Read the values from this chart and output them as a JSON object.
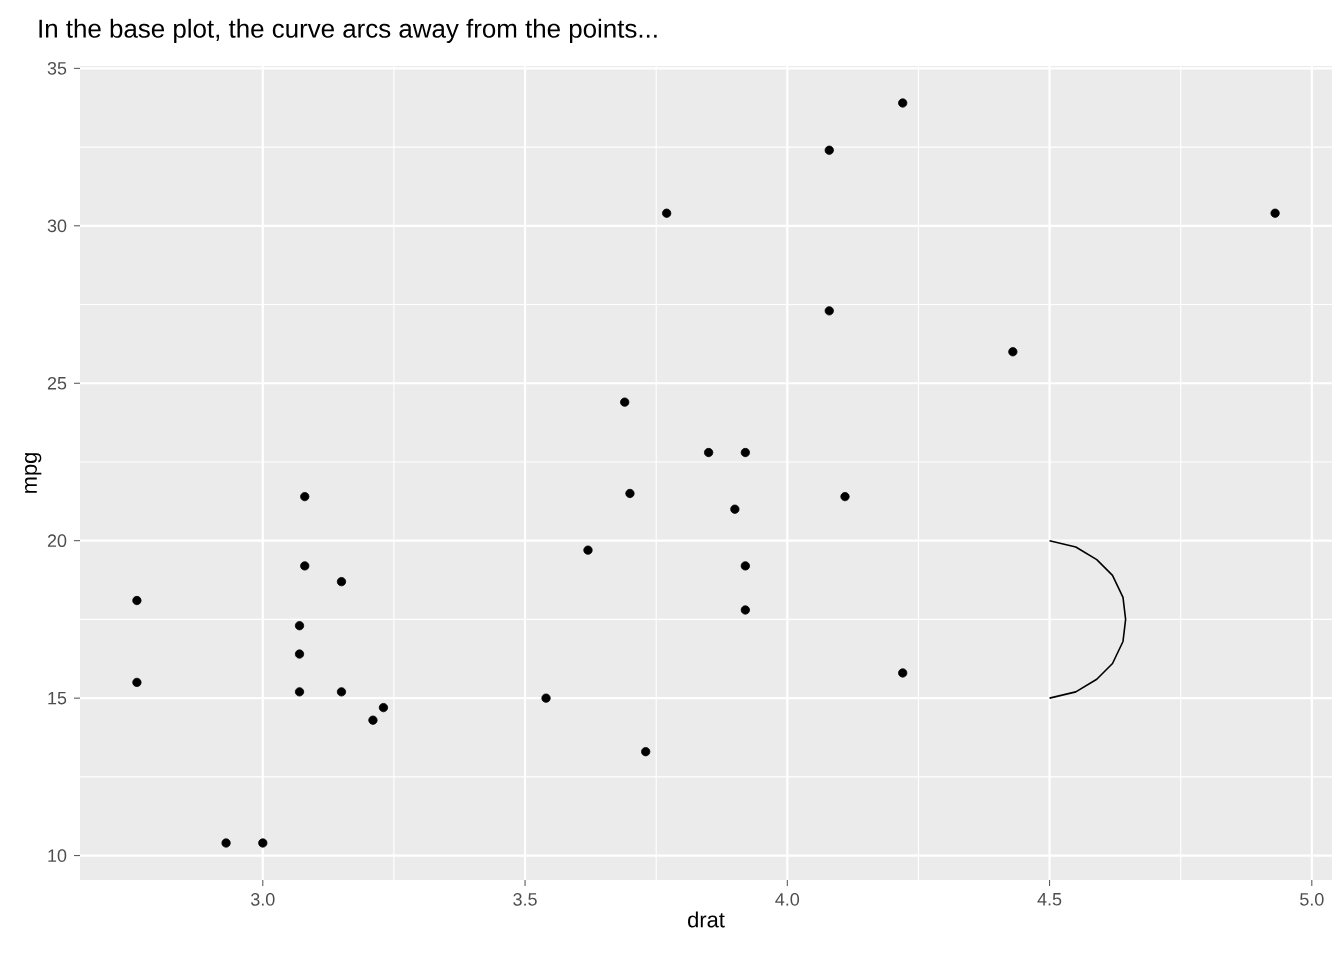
{
  "chart_data": {
    "type": "scatter",
    "title": "In the base plot, the curve arcs away from the points...",
    "xlabel": "drat",
    "ylabel": "mpg",
    "xlim": [
      2.6515,
      5.0385
    ],
    "ylim": [
      9.225,
      35.075
    ],
    "xticks": [
      {
        "value": 3,
        "label": "3.0"
      },
      {
        "value": 3.5,
        "label": "3.5"
      },
      {
        "value": 4,
        "label": "4.0"
      },
      {
        "value": 4.5,
        "label": "4.5"
      },
      {
        "value": 5,
        "label": "5.0"
      }
    ],
    "yticks": [
      10,
      15,
      20,
      25,
      30,
      35
    ],
    "grid": true,
    "marker": "circle",
    "series": [
      {
        "color": "#000000",
        "x": [
          3.9,
          3.85,
          3.08,
          3.15,
          2.76,
          3.21,
          3.69,
          3.92,
          3.92,
          3.92,
          3.07,
          3.07,
          3.07,
          2.93,
          3.0,
          3.23,
          4.08,
          4.93,
          4.22,
          3.7,
          2.76,
          3.15,
          3.73,
          3.08,
          4.08,
          4.43,
          3.77,
          4.22,
          3.62,
          3.54,
          4.11
        ],
        "values": [
          21.0,
          22.8,
          21.4,
          18.7,
          18.1,
          14.3,
          24.4,
          22.8,
          19.2,
          17.8,
          16.4,
          17.3,
          15.2,
          10.4,
          10.4,
          14.7,
          32.4,
          30.4,
          33.9,
          21.5,
          15.5,
          15.2,
          13.3,
          19.2,
          27.3,
          26.0,
          30.4,
          15.8,
          19.7,
          15.0,
          21.4
        ]
      },
      {
        "type": "line",
        "color": "#000000",
        "marker": "none",
        "x": [
          4.5,
          4.55,
          4.59,
          4.62,
          4.64,
          4.645,
          4.64,
          4.62,
          4.59,
          4.55,
          4.5
        ],
        "values": [
          20.0,
          19.8,
          19.4,
          18.9,
          18.2,
          17.5,
          16.8,
          16.1,
          15.6,
          15.2,
          15.0
        ]
      }
    ]
  }
}
